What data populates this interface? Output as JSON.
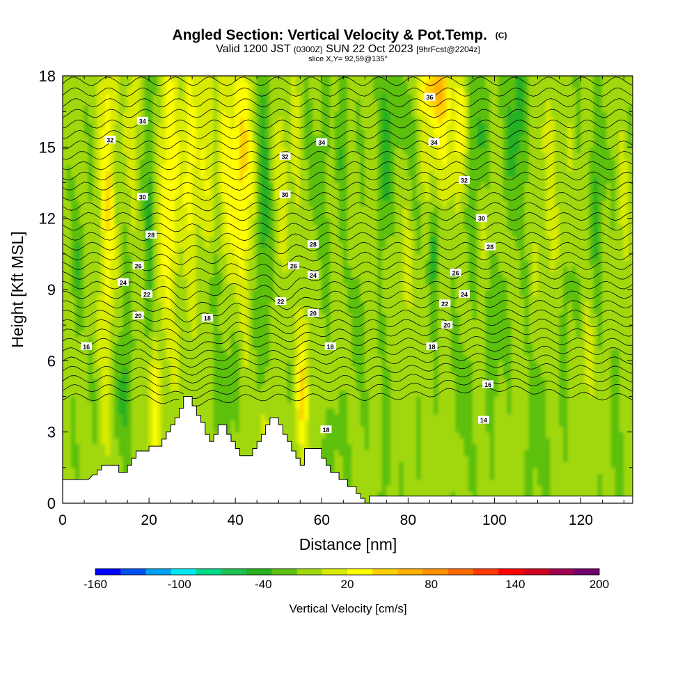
{
  "chart_data": {
    "type": "heatmap",
    "title": "Angled Section: Vertical Velocity & Pot.Temp.",
    "title_suffix": "(C)",
    "subtitle_parts": [
      "Valid 1200 JST",
      "(0300Z)",
      "SUN 22 Oct 2023",
      "[9hrFcst@2204z]"
    ],
    "slice_label": "slice X,Y= 92,59@135°",
    "xlabel": "Distance [nm]",
    "ylabel": "Height [Kft MSL]",
    "xlim": [
      0,
      132
    ],
    "ylim": [
      0,
      18
    ],
    "x_ticks": [
      0,
      20,
      40,
      60,
      80,
      100,
      120
    ],
    "y_ticks": [
      0,
      3,
      6,
      9,
      12,
      15,
      18
    ],
    "colorbar": {
      "label": "Vertical Velocity [cm/s]",
      "tick_values": [
        -160,
        -100,
        -40,
        20,
        80,
        140,
        200
      ],
      "min": -160,
      "max": 200,
      "step": 20,
      "colors": [
        "#0000ff",
        "#0050f0",
        "#00a0f0",
        "#00e8f0",
        "#00d88a",
        "#20c050",
        "#28b020",
        "#5cc010",
        "#a0d810",
        "#d8ea00",
        "#ffff00",
        "#ffd000",
        "#ffb000",
        "#ff9000",
        "#ff6a00",
        "#ff3a00",
        "#ff0000",
        "#d00020",
        "#a00050",
        "#70006a"
      ]
    },
    "theta_contour_labels": [
      {
        "v": "16",
        "x": 5.5,
        "y": 6.6
      },
      {
        "v": "18",
        "x": 33.5,
        "y": 7.8
      },
      {
        "v": "20",
        "x": 17.5,
        "y": 7.9
      },
      {
        "v": "22",
        "x": 19.5,
        "y": 8.8
      },
      {
        "v": "24",
        "x": 14,
        "y": 9.3
      },
      {
        "v": "26",
        "x": 17.5,
        "y": 10.0
      },
      {
        "v": "28",
        "x": 20.5,
        "y": 11.3
      },
      {
        "v": "30",
        "x": 18.5,
        "y": 12.9
      },
      {
        "v": "32",
        "x": 11,
        "y": 15.3
      },
      {
        "v": "34",
        "x": 18.5,
        "y": 16.1
      },
      {
        "v": "22",
        "x": 50.5,
        "y": 8.5
      },
      {
        "v": "26",
        "x": 53.5,
        "y": 10.0
      },
      {
        "v": "24",
        "x": 58,
        "y": 9.6
      },
      {
        "v": "20",
        "x": 58,
        "y": 8.0
      },
      {
        "v": "18",
        "x": 62,
        "y": 6.6
      },
      {
        "v": "28",
        "x": 58,
        "y": 10.9
      },
      {
        "v": "30",
        "x": 51.5,
        "y": 13.0
      },
      {
        "v": "32",
        "x": 51.5,
        "y": 14.6
      },
      {
        "v": "34",
        "x": 60,
        "y": 15.2
      },
      {
        "v": "18",
        "x": 61,
        "y": 3.1
      },
      {
        "v": "36",
        "x": 85,
        "y": 17.1
      },
      {
        "v": "34",
        "x": 86,
        "y": 15.2
      },
      {
        "v": "32",
        "x": 93,
        "y": 13.6
      },
      {
        "v": "30",
        "x": 97,
        "y": 12.0
      },
      {
        "v": "28",
        "x": 99,
        "y": 10.8
      },
      {
        "v": "26",
        "x": 91,
        "y": 9.7
      },
      {
        "v": "24",
        "x": 93,
        "y": 8.8
      },
      {
        "v": "22",
        "x": 88.5,
        "y": 8.4
      },
      {
        "v": "20",
        "x": 89,
        "y": 7.5
      },
      {
        "v": "18",
        "x": 85.5,
        "y": 6.6
      },
      {
        "v": "16",
        "x": 98.5,
        "y": 5.0
      },
      {
        "v": "14",
        "x": 97.5,
        "y": 3.5
      }
    ]
  }
}
